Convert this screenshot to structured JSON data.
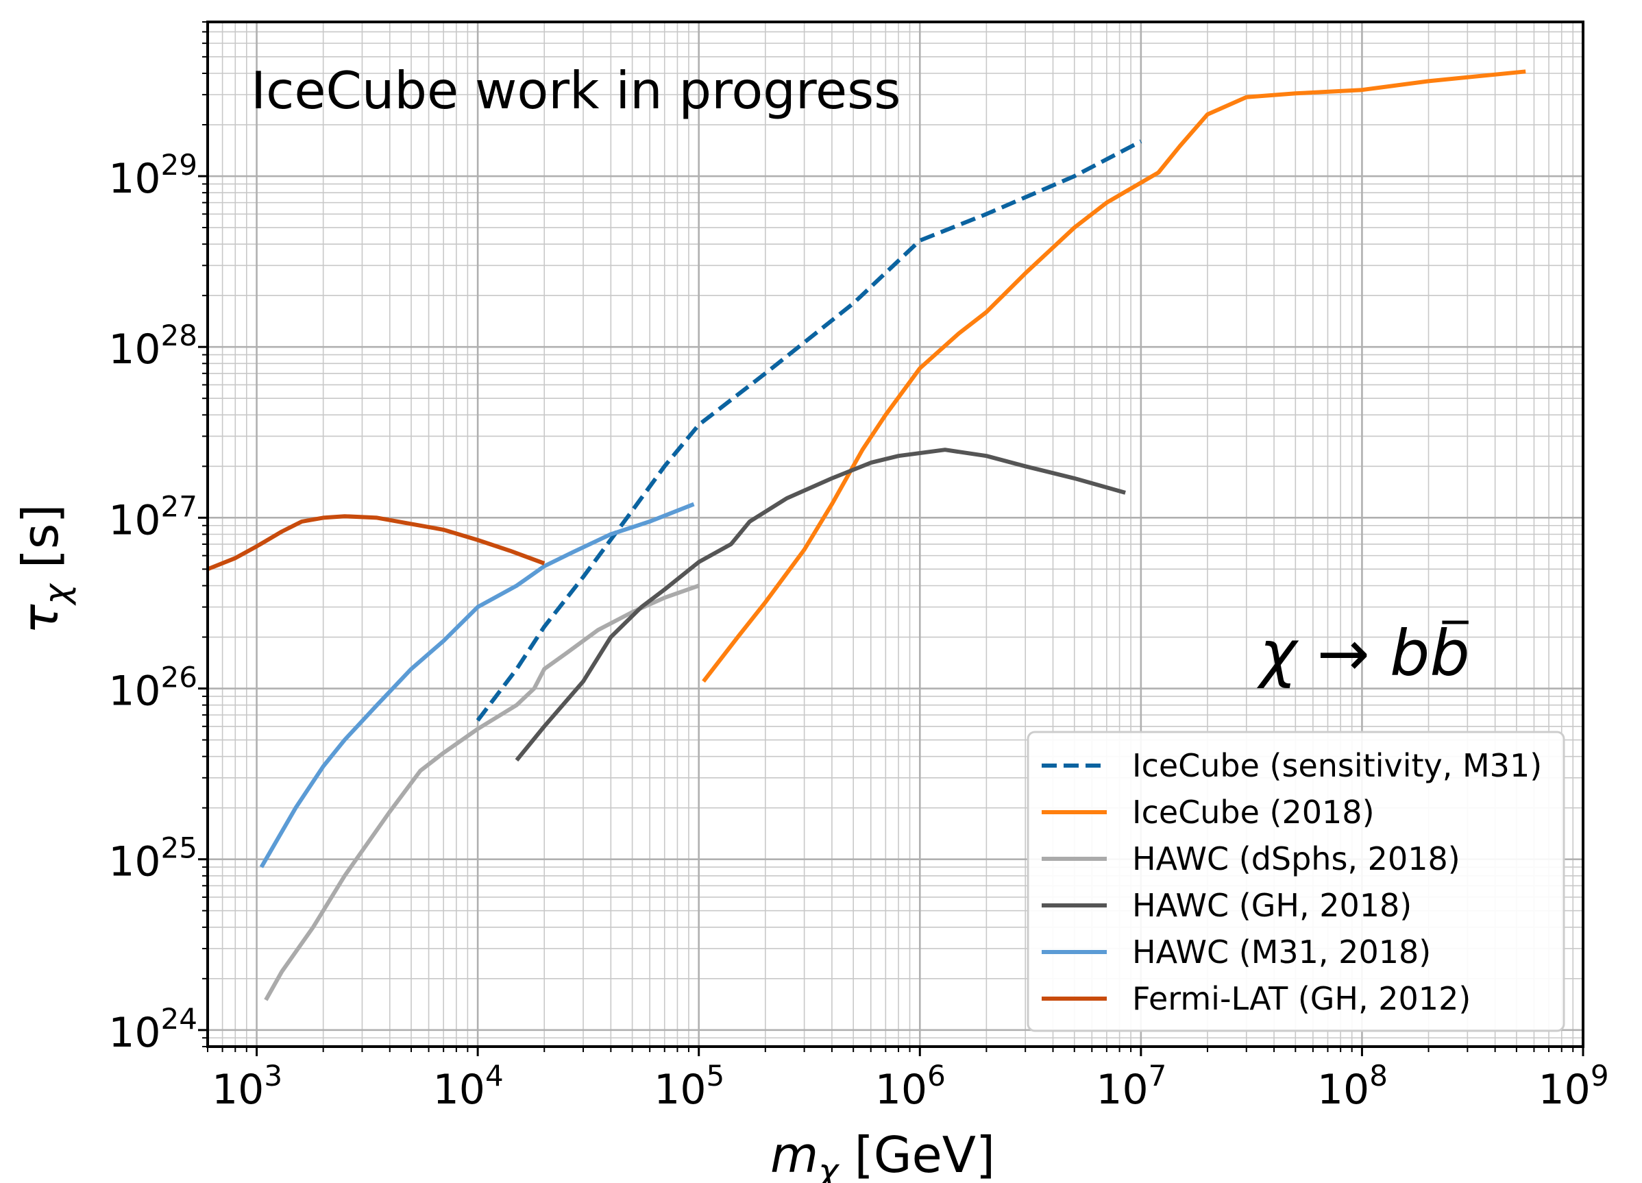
{
  "chart_data": {
    "type": "line",
    "title": "IceCube work in progress",
    "xlabel": {
      "base": "m",
      "sub": "χ",
      "unit": " [GeV]"
    },
    "ylabel": {
      "base": "τ",
      "sub": "χ",
      "unit": " [s]"
    },
    "xscale": "log",
    "yscale": "log",
    "xlim": [
      600,
      1000000000
    ],
    "ylim": [
      8e+23,
      8e+29
    ],
    "grid": true,
    "legend_position": "lower-right",
    "annotation": {
      "prefix": "χ → b",
      "bbar": "b",
      "position": "right-middle"
    },
    "x_ticks": [
      {
        "base": "10",
        "exp": "3",
        "value": 1000
      },
      {
        "base": "10",
        "exp": "4",
        "value": 10000
      },
      {
        "base": "10",
        "exp": "5",
        "value": 100000
      },
      {
        "base": "10",
        "exp": "6",
        "value": 1000000
      },
      {
        "base": "10",
        "exp": "7",
        "value": 10000000
      },
      {
        "base": "10",
        "exp": "8",
        "value": 100000000
      },
      {
        "base": "10",
        "exp": "9",
        "value": 1000000000
      }
    ],
    "y_ticks": [
      {
        "base": "10",
        "exp": "24",
        "value": 1e+24
      },
      {
        "base": "10",
        "exp": "25",
        "value": 1e+25
      },
      {
        "base": "10",
        "exp": "26",
        "value": 1e+26
      },
      {
        "base": "10",
        "exp": "27",
        "value": 1e+27
      },
      {
        "base": "10",
        "exp": "28",
        "value": 1e+28
      },
      {
        "base": "10",
        "exp": "29",
        "value": 1e+29
      }
    ],
    "series": [
      {
        "name": "IceCube (sensitivity, M31)",
        "color": "#0b63a0",
        "dash": true,
        "points": [
          [
            10000,
            6.5e+25
          ],
          [
            15000,
            1.3e+26
          ],
          [
            20000,
            2.3e+26
          ],
          [
            30000,
            4.5e+26
          ],
          [
            50000,
            1.1e+27
          ],
          [
            70000,
            2e+27
          ],
          [
            100000,
            3.5e+27
          ],
          [
            200000,
            7e+27
          ],
          [
            500000,
            1.8e+28
          ],
          [
            1000000,
            4.2e+28
          ],
          [
            2000000,
            6e+28
          ],
          [
            5000000,
            1e+29
          ],
          [
            10000000,
            1.6e+29
          ]
        ]
      },
      {
        "name": "IceCube (2018)",
        "color": "#ff7f0e",
        "dash": false,
        "points": [
          [
            105000,
            1.1e+26
          ],
          [
            150000,
            2e+26
          ],
          [
            200000,
            3.2e+26
          ],
          [
            300000,
            6.5e+26
          ],
          [
            400000,
            1.2e+27
          ],
          [
            550000,
            2.5e+27
          ],
          [
            700000,
            4e+27
          ],
          [
            1000000,
            7.5e+27
          ],
          [
            1500000,
            1.2e+28
          ],
          [
            2000000,
            1.6e+28
          ],
          [
            3000000,
            2.7e+28
          ],
          [
            5000000,
            5e+28
          ],
          [
            7000000,
            7e+28
          ],
          [
            12000000,
            1.05e+29
          ],
          [
            15000000,
            1.5e+29
          ],
          [
            20000000,
            2.3e+29
          ],
          [
            30000000,
            2.9e+29
          ],
          [
            50000000,
            3.05e+29
          ],
          [
            100000000,
            3.2e+29
          ],
          [
            200000000,
            3.6e+29
          ],
          [
            550000000,
            4.1e+29
          ]
        ]
      },
      {
        "name": "HAWC (dSphs, 2018)",
        "color": "#aaaaaa",
        "dash": false,
        "points": [
          [
            1100,
            1.5e+24
          ],
          [
            1300,
            2.2e+24
          ],
          [
            1800,
            4e+24
          ],
          [
            2500,
            8e+24
          ],
          [
            4000,
            1.9e+25
          ],
          [
            5500,
            3.3e+25
          ],
          [
            7000,
            4.2e+25
          ],
          [
            10000,
            5.8e+25
          ],
          [
            15000,
            8e+25
          ],
          [
            18000,
            1e+26
          ],
          [
            20000,
            1.3e+26
          ],
          [
            25000,
            1.6e+26
          ],
          [
            35000,
            2.2e+26
          ],
          [
            50000,
            2.8e+26
          ],
          [
            70000,
            3.4e+26
          ],
          [
            100000,
            4e+26
          ]
        ]
      },
      {
        "name": "HAWC (GH, 2018)",
        "color": "#555555",
        "dash": false,
        "points": [
          [
            15000,
            3.8e+25
          ],
          [
            20000,
            6e+25
          ],
          [
            30000,
            1.1e+26
          ],
          [
            40000,
            2e+26
          ],
          [
            55000,
            3e+26
          ],
          [
            70000,
            3.8e+26
          ],
          [
            100000,
            5.5e+26
          ],
          [
            140000,
            7e+26
          ],
          [
            170000,
            9.5e+26
          ],
          [
            250000,
            1.3e+27
          ],
          [
            400000,
            1.7e+27
          ],
          [
            600000,
            2.1e+27
          ],
          [
            800000,
            2.3e+27
          ],
          [
            1300000,
            2.5e+27
          ],
          [
            2000000,
            2.3e+27
          ],
          [
            3000000,
            2e+27
          ],
          [
            5000000,
            1.7e+27
          ],
          [
            8500000,
            1.4e+27
          ]
        ]
      },
      {
        "name": "HAWC (M31, 2018)",
        "color": "#5b9bd5",
        "dash": false,
        "points": [
          [
            1050,
            9e+24
          ],
          [
            1500,
            2e+25
          ],
          [
            2000,
            3.5e+25
          ],
          [
            2500,
            5e+25
          ],
          [
            3500,
            8e+25
          ],
          [
            5000,
            1.3e+26
          ],
          [
            7000,
            1.9e+26
          ],
          [
            10000,
            3e+26
          ],
          [
            15000,
            4e+26
          ],
          [
            20000,
            5.2e+26
          ],
          [
            27000,
            6.3e+26
          ],
          [
            40000,
            8e+26
          ],
          [
            60000,
            9.5e+26
          ],
          [
            95000,
            1.2e+27
          ]
        ]
      },
      {
        "name": "Fermi-LAT (GH, 2012)",
        "color": "#c84b0c",
        "dash": false,
        "points": [
          [
            600,
            5e+26
          ],
          [
            800,
            5.8e+26
          ],
          [
            1000,
            6.8e+26
          ],
          [
            1300,
            8.3e+26
          ],
          [
            1600,
            9.5e+26
          ],
          [
            2000,
            1e+27
          ],
          [
            2500,
            1.02e+27
          ],
          [
            3500,
            1e+27
          ],
          [
            5000,
            9.2e+26
          ],
          [
            7000,
            8.5e+26
          ],
          [
            10000,
            7.4e+26
          ],
          [
            14000,
            6.4e+26
          ],
          [
            20000,
            5.4e+26
          ]
        ]
      }
    ]
  }
}
